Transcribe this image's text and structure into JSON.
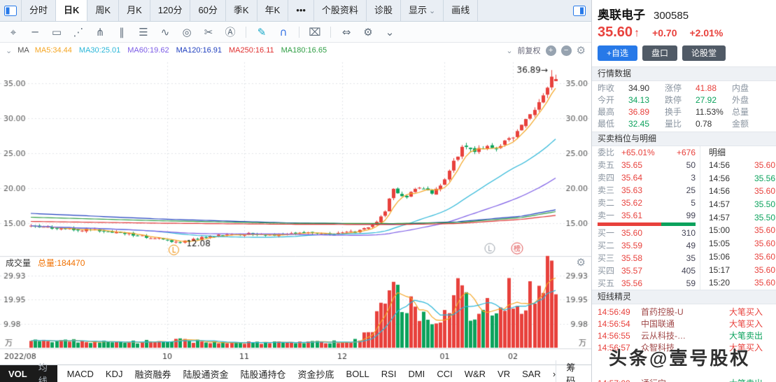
{
  "top_bar": {
    "tabs": [
      {
        "id": "fenshi",
        "label": "分时"
      },
      {
        "id": "rik",
        "label": "日K",
        "active": true
      },
      {
        "id": "zhouk",
        "label": "周K"
      },
      {
        "id": "yuek",
        "label": "月K"
      },
      {
        "id": "120min",
        "label": "120分"
      },
      {
        "id": "60min",
        "label": "60分"
      },
      {
        "id": "jik",
        "label": "季K"
      },
      {
        "id": "niank",
        "label": "年K"
      },
      {
        "id": "more",
        "label": "•••"
      },
      {
        "id": "gegu-ziliao",
        "label": "个股资料"
      },
      {
        "id": "zhengu",
        "label": "诊股"
      },
      {
        "id": "xianshi",
        "label": "显示",
        "chevron": true
      },
      {
        "id": "huaxian",
        "label": "画线"
      }
    ]
  },
  "draw_toolbar": {
    "icons": [
      {
        "name": "move-tool-icon",
        "glyph": "⌖"
      },
      {
        "name": "horizontal-line-tool-icon",
        "glyph": "─"
      },
      {
        "name": "rect-tool-icon",
        "glyph": "▭"
      },
      {
        "name": "trend-line-tool-icon",
        "glyph": "⋰"
      },
      {
        "name": "pitchfork-tool-icon",
        "glyph": "⋔"
      },
      {
        "name": "parallel-lines-tool-icon",
        "glyph": "∥"
      },
      {
        "name": "gann-lines-tool-icon",
        "glyph": "☰"
      },
      {
        "name": "wave-tool-icon",
        "glyph": "∿"
      },
      {
        "name": "circle-tool-icon",
        "glyph": "◎"
      },
      {
        "name": "percent-tool-icon",
        "glyph": "✂"
      },
      {
        "name": "text-tool-icon",
        "glyph": "Ⓐ"
      },
      {
        "sep": true
      },
      {
        "name": "pencil-tool-icon",
        "glyph": "✎",
        "color": "#18a8c8"
      },
      {
        "name": "magnet-tool-icon",
        "glyph": "∩",
        "color": "#2f6fe4"
      },
      {
        "sep": true
      },
      {
        "name": "delete-tool-icon",
        "glyph": "⌧"
      },
      {
        "sep": true
      },
      {
        "name": "expand-horizontal-icon",
        "glyph": "⇔"
      },
      {
        "name": "settings-tool-icon",
        "glyph": "⚙"
      },
      {
        "name": "chevron-down-icon",
        "glyph": "⌄"
      }
    ]
  },
  "chart": {
    "ma_prefix": "MA",
    "adjust_label": "前复权",
    "volume_title": "成交量",
    "volume_total": "总量:184470"
  },
  "chart_data": {
    "type": "candlestick",
    "title": "奥联电子 300585 日K 前复权",
    "count": 124,
    "price_range": [
      11,
      38
    ],
    "y_ticks": [
      15,
      20,
      25,
      30,
      35
    ],
    "x_axis_labels": [
      {
        "index": 0,
        "label": "2022/08"
      },
      {
        "index": 32,
        "label": "10"
      },
      {
        "index": 50,
        "label": "11"
      },
      {
        "index": 73,
        "label": "12"
      },
      {
        "index": 97,
        "label": "01"
      },
      {
        "index": 113,
        "label": "02"
      }
    ],
    "close_waypoints": [
      [
        0,
        14.6
      ],
      [
        8,
        14.25
      ],
      [
        16,
        13.9
      ],
      [
        24,
        13.4
      ],
      [
        30,
        12.75
      ],
      [
        35,
        12.25
      ],
      [
        40,
        12.9
      ],
      [
        46,
        13.35
      ],
      [
        52,
        13.5
      ],
      [
        58,
        13.25
      ],
      [
        64,
        13.55
      ],
      [
        70,
        13.45
      ],
      [
        76,
        13.8
      ],
      [
        80,
        14.6
      ],
      [
        83,
        16.8
      ],
      [
        85,
        19.8
      ],
      [
        88,
        18.7
      ],
      [
        91,
        20.3
      ],
      [
        94,
        19.2
      ],
      [
        97,
        21.2
      ],
      [
        99,
        23.8
      ],
      [
        101,
        25.8
      ],
      [
        104,
        25.2
      ],
      [
        107,
        26.2
      ],
      [
        109,
        25.4
      ],
      [
        111,
        26.8
      ],
      [
        113,
        27.3
      ],
      [
        115,
        28.8
      ],
      [
        117,
        30.4
      ],
      [
        119,
        32.2
      ],
      [
        121,
        34.2
      ],
      [
        122,
        36.0
      ],
      [
        123,
        35.6
      ]
    ],
    "volume_waypoints": [
      [
        0,
        3.5
      ],
      [
        10,
        2.8
      ],
      [
        20,
        2.2
      ],
      [
        30,
        2.6
      ],
      [
        35,
        3.2
      ],
      [
        40,
        2.4
      ],
      [
        50,
        2.2
      ],
      [
        60,
        2.0
      ],
      [
        70,
        2.4
      ],
      [
        76,
        2.8
      ],
      [
        80,
        8
      ],
      [
        82,
        18
      ],
      [
        83,
        25
      ],
      [
        85,
        28
      ],
      [
        87,
        15
      ],
      [
        89,
        21
      ],
      [
        91,
        13
      ],
      [
        93,
        11
      ],
      [
        95,
        9
      ],
      [
        97,
        15
      ],
      [
        99,
        22
      ],
      [
        100,
        29
      ],
      [
        102,
        18
      ],
      [
        104,
        13
      ],
      [
        106,
        20
      ],
      [
        108,
        12
      ],
      [
        110,
        17
      ],
      [
        112,
        24
      ],
      [
        114,
        16
      ],
      [
        116,
        21
      ],
      [
        118,
        25
      ],
      [
        120,
        29
      ],
      [
        121,
        30
      ],
      [
        122,
        28
      ],
      [
        123,
        22
      ]
    ],
    "volume_range": [
      0,
      33
    ],
    "volume_ticks": [
      9.98,
      19.95,
      29.93
    ],
    "volume_unit": "万",
    "high_index": 122,
    "high_value": 36.89,
    "low_index": 35,
    "low_value": 12.08,
    "last_close": 35.6,
    "low_marker": "L",
    "badge_l": "L",
    "badge_bang": "榜",
    "up_color": "#e8413c",
    "down_color": "#0ba25c",
    "vol_ma_colors": [
      "#f5a623",
      "#29b6d8"
    ],
    "ma": [
      {
        "name": "MA5",
        "period": 5,
        "color": "#f5a623",
        "last": "34.44"
      },
      {
        "name": "MA30",
        "period": 30,
        "color": "#29b6d8",
        "last": "25.01"
      },
      {
        "name": "MA60",
        "period": 60,
        "color": "#7b5be6",
        "last": "19.62"
      },
      {
        "name": "MA120",
        "color": "#1f3fbf",
        "last": "16.91",
        "waypoints": [
          [
            0,
            16.4
          ],
          [
            30,
            15.6
          ],
          [
            60,
            15.05
          ],
          [
            85,
            14.85
          ],
          [
            100,
            15.2
          ],
          [
            115,
            16.0
          ],
          [
            123,
            16.91
          ]
        ]
      },
      {
        "name": "MA250",
        "color": "#e03131",
        "last": "16.11",
        "waypoints": [
          [
            0,
            15.25
          ],
          [
            30,
            15.0
          ],
          [
            60,
            14.85
          ],
          [
            85,
            14.8
          ],
          [
            100,
            14.95
          ],
          [
            115,
            15.55
          ],
          [
            123,
            16.11
          ]
        ]
      },
      {
        "name": "MA180",
        "color": "#2f9e44",
        "last": "16.65",
        "waypoints": [
          [
            0,
            15.85
          ],
          [
            30,
            15.35
          ],
          [
            60,
            15.0
          ],
          [
            85,
            14.95
          ],
          [
            100,
            15.1
          ],
          [
            115,
            15.8
          ],
          [
            123,
            16.65
          ]
        ]
      }
    ]
  },
  "bottom_tabs": {
    "pill": [
      {
        "id": "vol",
        "label": "VOL",
        "active": true
      },
      {
        "id": "junxian",
        "label": "均线"
      }
    ],
    "items": [
      {
        "id": "macd",
        "label": "MACD"
      },
      {
        "id": "kdj",
        "label": "KDJ"
      },
      {
        "id": "rongzirongquan",
        "label": "融资融券"
      },
      {
        "id": "luguzijin",
        "label": "陆股通资金"
      },
      {
        "id": "luguchicang",
        "label": "陆股通持仓"
      },
      {
        "id": "zijinchaodi",
        "label": "资金抄底"
      },
      {
        "id": "boll",
        "label": "BOLL"
      },
      {
        "id": "rsi",
        "label": "RSI"
      },
      {
        "id": "dmi",
        "label": "DMI"
      },
      {
        "id": "cci",
        "label": "CCI"
      },
      {
        "id": "wr",
        "label": "W&R"
      },
      {
        "id": "vr",
        "label": "VR"
      },
      {
        "id": "sar",
        "label": "SAR"
      },
      {
        "id": "more-indicators",
        "label": "›"
      }
    ],
    "right": "筹码"
  },
  "panel": {
    "stock_name": "奥联电子",
    "stock_code": "300585",
    "price": "35.60",
    "arrow": "↑",
    "change": "+0.70",
    "pct": "+2.01%",
    "buttons": [
      {
        "id": "add-watchlist-button",
        "label": "+自选",
        "cls": "blue"
      },
      {
        "id": "pankou-button",
        "label": "盘口",
        "cls": "dark"
      },
      {
        "id": "lungutang-button",
        "label": "论股堂",
        "cls": "dark"
      }
    ],
    "quote_section": "行情数据",
    "quote_rows": [
      [
        {
          "label": "昨收",
          "value": "34.90",
          "cls": "flat"
        },
        {
          "label": "涨停",
          "value": "41.88",
          "cls": "up"
        },
        {
          "label": "内盘",
          "value": "",
          "cls": "up"
        }
      ],
      [
        {
          "label": "今开",
          "value": "34.13",
          "cls": "down"
        },
        {
          "label": "跌停",
          "value": "27.92",
          "cls": "down"
        },
        {
          "label": "外盘",
          "value": "",
          "cls": "down"
        }
      ],
      [
        {
          "label": "最高",
          "value": "36.89",
          "cls": "up"
        },
        {
          "label": "换手",
          "value": "11.53%",
          "cls": "flat"
        },
        {
          "label": "总量",
          "value": "",
          "cls": "flat"
        }
      ],
      [
        {
          "label": "最低",
          "value": "32.45",
          "cls": "down"
        },
        {
          "label": "量比",
          "value": "0.78",
          "cls": "flat"
        },
        {
          "label": "金额",
          "value": "",
          "cls": "flat"
        }
      ]
    ],
    "depth_section": "买卖档位与明细",
    "weibi_label": "委比",
    "weibi_value": "+65.01%",
    "weibi_delta": "+676",
    "detail_header": "明细",
    "asks": [
      [
        "卖五",
        "35.65",
        "50"
      ],
      [
        "卖四",
        "35.64",
        "3"
      ],
      [
        "卖三",
        "35.63",
        "25"
      ],
      [
        "卖二",
        "35.62",
        "5"
      ],
      [
        "卖一",
        "35.61",
        "99"
      ]
    ],
    "bids": [
      [
        "买一",
        "35.60",
        "310"
      ],
      [
        "买二",
        "35.59",
        "49"
      ],
      [
        "买三",
        "35.58",
        "35"
      ],
      [
        "买四",
        "35.57",
        "405"
      ],
      [
        "买五",
        "35.56",
        "59"
      ]
    ],
    "ticks": [
      {
        "t": "14:56",
        "p": "35.60",
        "cls": "up"
      },
      {
        "t": "14:56",
        "p": "35.56",
        "cls": "down"
      },
      {
        "t": "14:56",
        "p": "35.60",
        "cls": "up"
      },
      {
        "t": "14:57",
        "p": "35.50",
        "cls": "down"
      },
      {
        "t": "14:57",
        "p": "35.50",
        "cls": "down"
      },
      {
        "t": "15:00",
        "p": "35.60",
        "cls": "up"
      },
      {
        "t": "15:05",
        "p": "35.60",
        "cls": "up"
      },
      {
        "t": "15:06",
        "p": "35.60",
        "cls": "up"
      },
      {
        "t": "15:17",
        "p": "35.60",
        "cls": "up"
      },
      {
        "t": "15:20",
        "p": "35.60",
        "cls": "up"
      }
    ],
    "alert_section": "短线精灵",
    "alerts": [
      {
        "time": "14:56:49",
        "name": "首药控股-U",
        "action": "大笔买入",
        "cls": "buy"
      },
      {
        "time": "14:56:54",
        "name": "中国联通",
        "action": "大笔买入",
        "cls": "buy"
      },
      {
        "time": "14:56:55",
        "name": "云从科技-…",
        "action": "大笔卖出",
        "cls": "sell"
      },
      {
        "time": "14:56:57",
        "name": "众智科技",
        "action": "大笔买入",
        "cls": "buy"
      },
      {
        "time": "",
        "name": "",
        "action": "",
        "cls": "buy"
      },
      {
        "time": "",
        "name": "",
        "action": "",
        "cls": "buy"
      },
      {
        "time": "14:57:00",
        "name": "通行宝",
        "action": "大笔卖出",
        "cls": "sell"
      }
    ]
  },
  "watermark": "头条@壹号股权"
}
